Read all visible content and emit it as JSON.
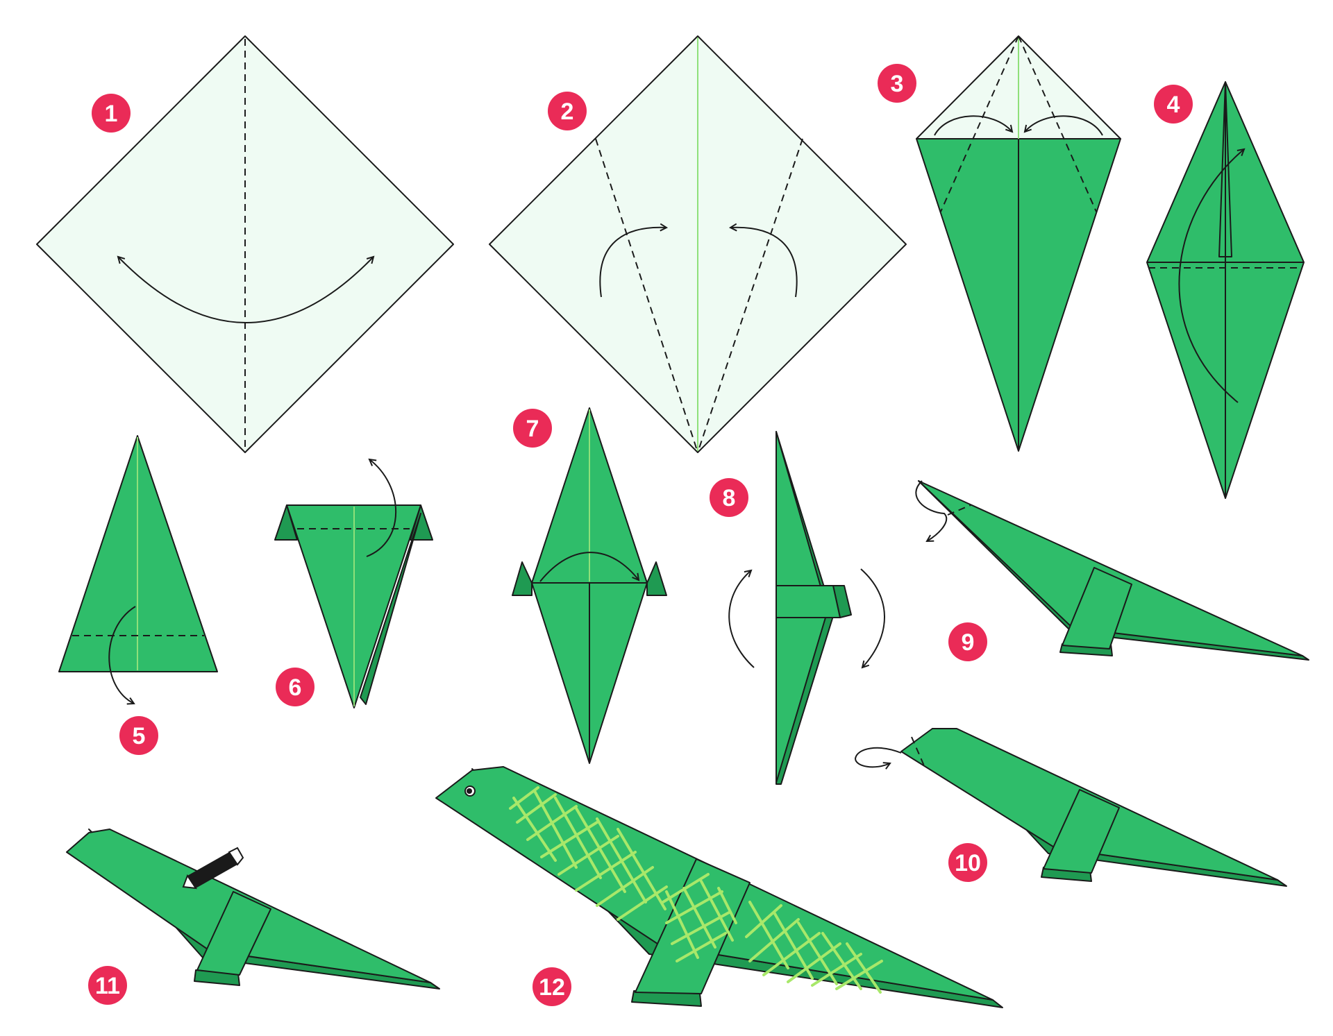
{
  "colors": {
    "badge": "#ea2b57",
    "paper_green": "#2fbd6a",
    "paper_dark_green": "#1f9a52",
    "paper_white_side": "#effbf3",
    "pattern_light_green": "#a8e86a"
  },
  "steps": [
    {
      "number": "1",
      "action": "fold-and-unfold"
    },
    {
      "number": "2",
      "action": "fold-edges-to-center"
    },
    {
      "number": "3",
      "action": "fold-edges-to-center"
    },
    {
      "number": "4",
      "action": "fold-up"
    },
    {
      "number": "5",
      "action": "fold-tip-down"
    },
    {
      "number": "6",
      "action": "fold-back"
    },
    {
      "number": "7",
      "action": "fold-in-half"
    },
    {
      "number": "8",
      "action": "rotate"
    },
    {
      "number": "9",
      "action": "inside-reverse-fold-neck"
    },
    {
      "number": "10",
      "action": "inside-reverse-fold-head"
    },
    {
      "number": "11",
      "action": "draw-eye"
    },
    {
      "number": "12",
      "action": "finished-dinosaur"
    }
  ]
}
